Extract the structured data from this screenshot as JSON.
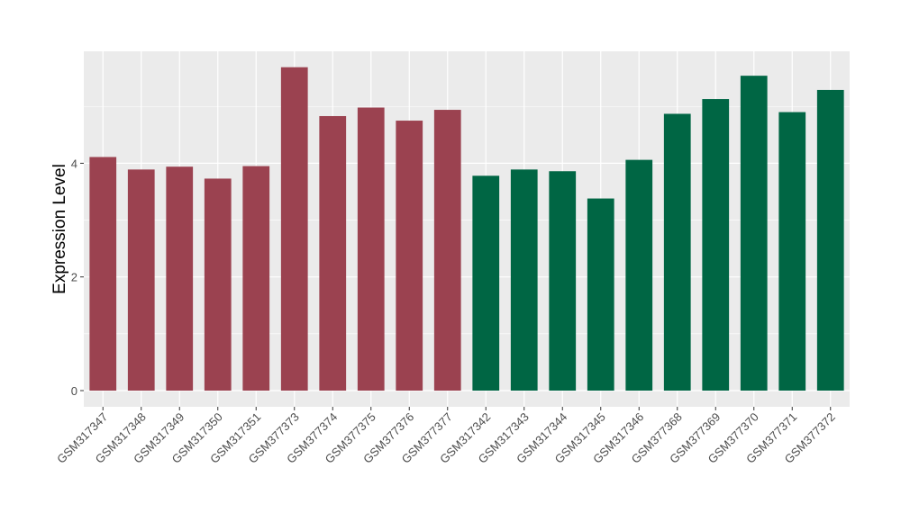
{
  "chart_data": {
    "type": "bar",
    "title": "",
    "xlabel": "",
    "ylabel": "Expression Level",
    "ylim": [
      -0.285,
      5.97
    ],
    "yticks": [
      0,
      2,
      4
    ],
    "grid": true,
    "categories": [
      "GSM317347",
      "GSM317348",
      "GSM317349",
      "GSM317350",
      "GSM317351",
      "GSM377373",
      "GSM377374",
      "GSM377375",
      "GSM377376",
      "GSM377377",
      "GSM317342",
      "GSM317343",
      "GSM317344",
      "GSM317345",
      "GSM317346",
      "GSM377368",
      "GSM377369",
      "GSM377370",
      "GSM377371",
      "GSM377372"
    ],
    "values": [
      4.11,
      3.89,
      3.94,
      3.73,
      3.95,
      5.69,
      4.83,
      4.98,
      4.75,
      4.94,
      3.78,
      3.89,
      3.86,
      3.38,
      4.06,
      4.87,
      5.13,
      5.54,
      4.9,
      5.29
    ],
    "groups": [
      0,
      0,
      0,
      0,
      0,
      0,
      0,
      0,
      0,
      0,
      1,
      1,
      1,
      1,
      1,
      1,
      1,
      1,
      1,
      1
    ],
    "group_colors": [
      "#9b4250",
      "#006644"
    ]
  }
}
